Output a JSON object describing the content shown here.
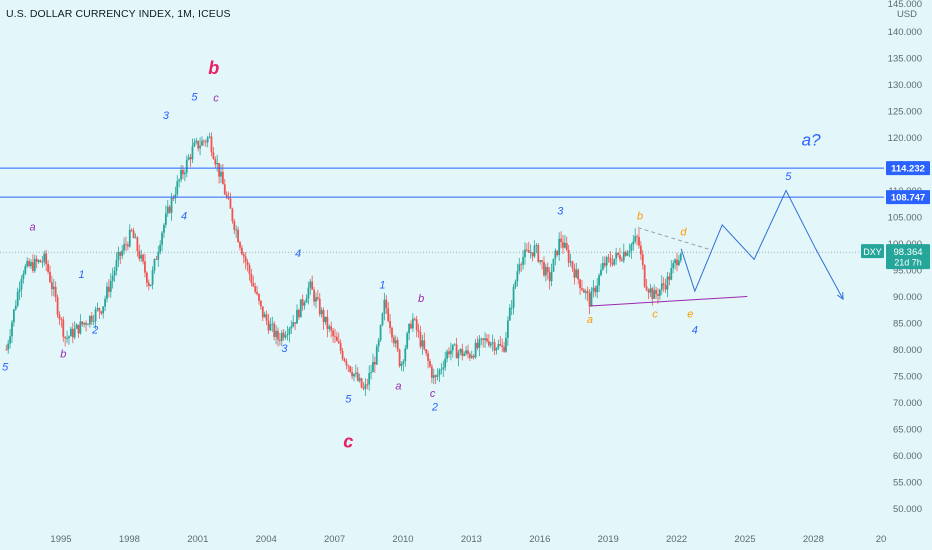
{
  "header": {
    "title": "U.S. DOLLAR CURRENCY INDEX, 1M, ICEUS"
  },
  "price_scale": {
    "currency": "USD"
  },
  "badges": {
    "line_upper": {
      "value": "114.232",
      "color": "#2962ff"
    },
    "line_lower": {
      "value": "108.747",
      "color": "#2962ff"
    },
    "symbol": "DXY",
    "last_price": "98.364",
    "countdown": "21d 7h",
    "last_color": "#26a69a"
  },
  "colors": {
    "background": "#e3f7fb",
    "candle_up": "#26a69a",
    "candle_down": "#ef5350",
    "wave_blue": "#2962ff",
    "wave_purple": "#9c27b0",
    "wave_magenta": "#e91e63",
    "wave_orange": "#ff9800",
    "projection": "#2f6fd6"
  },
  "chart_data": {
    "type": "candlestick",
    "title": "U.S. DOLLAR CURRENCY INDEX, 1M, ICEUS",
    "y_unit": "USD",
    "ylim": [
      45,
      145
    ],
    "xlim": [
      1992.5,
      2030.5
    ],
    "y_ticks": [
      "145.000",
      "140.000",
      "135.000",
      "130.000",
      "125.000",
      "120.000",
      "115.000",
      "110.000",
      "105.000",
      "100.000",
      "95.000",
      "90.000",
      "85.000",
      "80.000",
      "75.000",
      "70.000",
      "65.000",
      "60.000",
      "55.000",
      "50.000"
    ],
    "x_ticks": [
      "1995",
      "1998",
      "2001",
      "2004",
      "2007",
      "2010",
      "2013",
      "2016",
      "2019",
      "2022",
      "2025",
      "2028",
      "20"
    ],
    "grid": false,
    "last_price": 98.364,
    "horizontal_lines": [
      114.232,
      108.747
    ],
    "price_path": [
      [
        1992.6,
        80
      ],
      [
        1993.3,
        95
      ],
      [
        1994.3,
        97
      ],
      [
        1995.2,
        82
      ],
      [
        1996.0,
        85
      ],
      [
        1996.8,
        88
      ],
      [
        1997.5,
        97
      ],
      [
        1998.1,
        102
      ],
      [
        1998.9,
        92
      ],
      [
        1999.4,
        102
      ],
      [
        2000.0,
        110
      ],
      [
        2000.8,
        118
      ],
      [
        2001.5,
        120
      ],
      [
        2002.3,
        108
      ],
      [
        2003.0,
        98
      ],
      [
        2003.8,
        87
      ],
      [
        2004.5,
        82
      ],
      [
        2005.3,
        86
      ],
      [
        2005.9,
        92
      ],
      [
        2006.6,
        85
      ],
      [
        2007.5,
        78
      ],
      [
        2008.3,
        72
      ],
      [
        2008.9,
        80
      ],
      [
        2009.2,
        89
      ],
      [
        2009.9,
        77
      ],
      [
        2010.4,
        86
      ],
      [
        2011.4,
        74
      ],
      [
        2012.0,
        80
      ],
      [
        2012.9,
        79
      ],
      [
        2013.7,
        82
      ],
      [
        2014.4,
        80
      ],
      [
        2015.1,
        97
      ],
      [
        2015.8,
        99
      ],
      [
        2016.4,
        93
      ],
      [
        2016.9,
        101
      ],
      [
        2017.6,
        94
      ],
      [
        2018.2,
        89
      ],
      [
        2018.8,
        96
      ],
      [
        2019.6,
        98
      ],
      [
        2020.3,
        101
      ],
      [
        2020.6,
        93
      ],
      [
        2021.0,
        90
      ],
      [
        2021.6,
        93
      ],
      [
        2022.2,
        99
      ]
    ],
    "projection_path": [
      [
        2022.2,
        99
      ],
      [
        2022.8,
        91
      ],
      [
        2024.0,
        103.5
      ],
      [
        2025.4,
        97
      ],
      [
        2026.8,
        110
      ],
      [
        2028.1,
        99
      ],
      [
        2029.3,
        89.5
      ]
    ],
    "trend_lines": [
      {
        "from": [
          2018.2,
          88.2
        ],
        "to": [
          2025.1,
          90.0
        ],
        "color": "#9c27b0",
        "style": "solid"
      },
      {
        "from": [
          2020.3,
          103.0
        ],
        "to": [
          2023.5,
          98.8
        ],
        "color": "#9e9e9e",
        "style": "dashed"
      }
    ],
    "annotations": [
      {
        "text": "5",
        "x": 1992.55,
        "y": 76,
        "color": "#2962ff"
      },
      {
        "text": "a",
        "x": 1993.75,
        "y": 102.5,
        "color": "#9c27b0"
      },
      {
        "text": "1",
        "x": 1995.9,
        "y": 93.5,
        "color": "#2962ff"
      },
      {
        "text": "2",
        "x": 1996.5,
        "y": 83,
        "color": "#2962ff"
      },
      {
        "text": "b",
        "x": 1995.1,
        "y": 78.5,
        "color": "#9c27b0"
      },
      {
        "text": "3",
        "x": 1999.6,
        "y": 123.5,
        "color": "#2962ff"
      },
      {
        "text": "4",
        "x": 2000.4,
        "y": 104.5,
        "color": "#2962ff"
      },
      {
        "text": "5",
        "x": 2000.85,
        "y": 127,
        "color": "#2962ff"
      },
      {
        "text": "c",
        "x": 2001.8,
        "y": 126.8,
        "color": "#9c27b0"
      },
      {
        "text": "b",
        "x": 2001.7,
        "y": 132,
        "color": "#e91e63"
      },
      {
        "text": "4",
        "x": 2005.4,
        "y": 97.5,
        "color": "#2962ff"
      },
      {
        "text": "3",
        "x": 2004.8,
        "y": 79.5,
        "color": "#2962ff"
      },
      {
        "text": "5",
        "x": 2007.6,
        "y": 70,
        "color": "#2962ff"
      },
      {
        "text": "c",
        "x": 2007.6,
        "y": 61.5,
        "color": "#e91e63"
      },
      {
        "text": "1",
        "x": 2009.1,
        "y": 91.5,
        "color": "#2962ff"
      },
      {
        "text": "a",
        "x": 2009.8,
        "y": 72.5,
        "color": "#9c27b0"
      },
      {
        "text": "b",
        "x": 2010.8,
        "y": 89,
        "color": "#9c27b0"
      },
      {
        "text": "c",
        "x": 2011.3,
        "y": 71,
        "color": "#9c27b0"
      },
      {
        "text": "2",
        "x": 2011.4,
        "y": 68.5,
        "color": "#2962ff"
      },
      {
        "text": "3",
        "x": 2016.9,
        "y": 105.5,
        "color": "#2962ff"
      },
      {
        "text": "a",
        "x": 2018.2,
        "y": 85,
        "color": "#ff9800"
      },
      {
        "text": "b",
        "x": 2020.4,
        "y": 104.5,
        "color": "#ff9800"
      },
      {
        "text": "c",
        "x": 2021.05,
        "y": 86,
        "color": "#ff9800"
      },
      {
        "text": "d",
        "x": 2022.3,
        "y": 101.5,
        "color": "#ff9800"
      },
      {
        "text": "e",
        "x": 2022.6,
        "y": 86,
        "color": "#ff9800"
      },
      {
        "text": "4",
        "x": 2022.8,
        "y": 83,
        "color": "#2962ff"
      },
      {
        "text": "5",
        "x": 2026.9,
        "y": 112,
        "color": "#2962ff"
      },
      {
        "text": "a?",
        "x": 2027.9,
        "y": 118.5,
        "color": "#2962ff"
      }
    ]
  }
}
